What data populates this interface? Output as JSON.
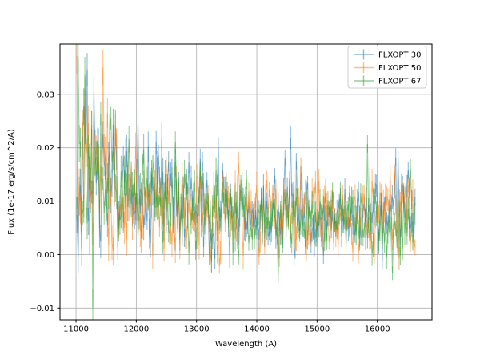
{
  "chart_data": {
    "type": "errorbar",
    "title": "",
    "xlabel": "Wavelength (A)",
    "ylabel": "Flux (1e-17 erg/s/cm^2/A)",
    "xlim": [
      10734,
      16907
    ],
    "ylim": [
      -0.0122,
      0.0394
    ],
    "xticks": [
      {
        "value": 11000,
        "label": "11000"
      },
      {
        "value": 12000,
        "label": "12000"
      },
      {
        "value": 13000,
        "label": "13000"
      },
      {
        "value": 14000,
        "label": "14000"
      },
      {
        "value": 15000,
        "label": "15000"
      },
      {
        "value": 16000,
        "label": "16000"
      }
    ],
    "yticks": [
      {
        "value": -0.01,
        "label": "−0.01"
      },
      {
        "value": 0.0,
        "label": "0.00"
      },
      {
        "value": 0.01,
        "label": "0.01"
      },
      {
        "value": 0.02,
        "label": "0.02"
      },
      {
        "value": 0.03,
        "label": "0.03"
      }
    ],
    "grid": "both",
    "grid_color": "#b0b0b0",
    "background": "#ffffff",
    "spine_color": "#000000",
    "alpha": 0.5,
    "legend": {
      "location": "upper right",
      "border_color": "#cccccc",
      "background": "#ffffff",
      "entries": [
        "FLXOPT 30",
        "FLXOPT 50",
        "FLXOPT 67"
      ]
    },
    "x_start": 11016,
    "x_end": 16625,
    "n_points": 300,
    "outlier_prob": 0.05,
    "outlier_scale": 2.0,
    "y_clamp": [
      -0.0099,
      0.0372
    ],
    "errorbar_jitter": [
      0.7,
      1.3
    ],
    "trend_points": [
      [
        11016,
        0.015
      ],
      [
        11250,
        0.0135
      ],
      [
        11600,
        0.012
      ],
      [
        12000,
        0.0105
      ],
      [
        12500,
        0.0098
      ],
      [
        13000,
        0.009
      ],
      [
        13500,
        0.0085
      ],
      [
        14000,
        0.0078
      ],
      [
        14500,
        0.0072
      ],
      [
        15000,
        0.0068
      ],
      [
        15500,
        0.0066
      ],
      [
        16000,
        0.0067
      ],
      [
        16300,
        0.0078
      ],
      [
        16625,
        0.007
      ]
    ],
    "sigma_points": [
      [
        11016,
        0.0088
      ],
      [
        11400,
        0.0075
      ],
      [
        11800,
        0.006
      ],
      [
        12300,
        0.005
      ],
      [
        13000,
        0.0044
      ],
      [
        14000,
        0.004
      ],
      [
        15000,
        0.0034
      ],
      [
        16000,
        0.0034
      ],
      [
        16350,
        0.004
      ],
      [
        16625,
        0.0036
      ]
    ],
    "errorbar_half_points": [
      [
        11016,
        0.003
      ],
      [
        12000,
        0.0024
      ],
      [
        13000,
        0.002
      ],
      [
        15000,
        0.0018
      ],
      [
        16625,
        0.0018
      ]
    ],
    "series": [
      {
        "name": "FLXOPT 30",
        "color": "#1f77b4",
        "seed": 42,
        "offset_points": [
          [
            11016,
            0.0008
          ],
          [
            13000,
            0.0002
          ],
          [
            15800,
            0.0005
          ],
          [
            16350,
            0.0016
          ],
          [
            16625,
            0.0008
          ]
        ]
      },
      {
        "name": "FLXOPT 50",
        "color": "#ff7f0e",
        "seed": 7,
        "offset_points": [
          [
            11016,
            0.0002
          ],
          [
            16625,
            0.0004
          ]
        ]
      },
      {
        "name": "FLXOPT 67",
        "color": "#2ca02c",
        "seed": 13,
        "offset_points": [
          [
            11016,
            -0.0004
          ],
          [
            14000,
            -0.0008
          ],
          [
            16625,
            -0.0014
          ]
        ]
      }
    ]
  }
}
